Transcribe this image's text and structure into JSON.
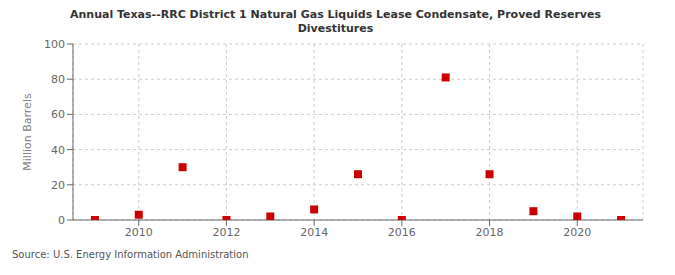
{
  "chart_data": {
    "type": "scatter",
    "title": "Annual Texas--RRC District 1 Natural Gas Liquids Lease Condensate, Proved Reserves\nDivestitures",
    "y_label": "Million Barrels",
    "annotation": "Source: U.S. Energy Information Administration",
    "x": [
      2009,
      2010,
      2011,
      2012,
      2013,
      2014,
      2015,
      2016,
      2017,
      2018,
      2019,
      2020,
      2021
    ],
    "values": [
      0.0,
      3.0,
      30.0,
      0.0,
      2.0,
      6.0,
      26.0,
      0.0,
      81.0,
      26.0,
      5.0,
      2.0,
      0.0
    ],
    "color": "#cc0000",
    "marker": "square",
    "xlim": [
      2008.5,
      2021.5
    ],
    "ylim": [
      0,
      100
    ],
    "xticks": [
      2010,
      2012,
      2014,
      2016,
      2018,
      2020
    ],
    "yticks": [
      0,
      20,
      40,
      60,
      80,
      100
    ],
    "grid": true
  }
}
